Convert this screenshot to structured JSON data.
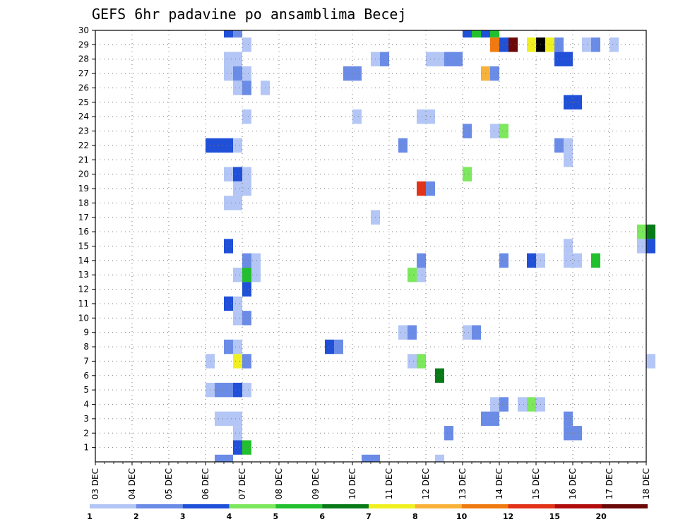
{
  "chart_data": {
    "type": "heatmap",
    "title": "GEFS 6hr padavine po ansamblima Becej",
    "xlabel": "",
    "ylabel": "",
    "x_tick_labels": [
      "03 DEC",
      "04 DEC",
      "05 DEC",
      "06 DEC",
      "07 DEC",
      "08 DEC",
      "09 DEC",
      "10 DEC",
      "11 DEC",
      "12 DEC",
      "13 DEC",
      "14 DEC",
      "15 DEC",
      "16 DEC",
      "17 DEC",
      "18 DEC"
    ],
    "x_range_days": [
      0,
      15
    ],
    "x_step_hours": 6,
    "y_tick_labels": [
      1,
      2,
      3,
      4,
      5,
      6,
      7,
      8,
      9,
      10,
      11,
      12,
      13,
      14,
      15,
      16,
      17,
      18,
      19,
      20,
      21,
      22,
      23,
      24,
      25,
      26,
      27,
      28,
      29,
      30
    ],
    "y_range": [
      0,
      30
    ],
    "grid": true,
    "legend_position": "bottom",
    "legend_levels": [
      1,
      2,
      3,
      4,
      5,
      6,
      7,
      8,
      10,
      12,
      15,
      20
    ],
    "legend_colors": [
      "#b3c6f5",
      "#6b8ce6",
      "#2050d8",
      "#7ce85c",
      "#22c02e",
      "#087a18",
      "#f0f020",
      "#f8b23a",
      "#f07a10",
      "#e23218",
      "#b20c0c",
      "#6c0808"
    ],
    "cells": [
      [
        30,
        3.5,
        3
      ],
      [
        30,
        3.75,
        2
      ],
      [
        30,
        10,
        3
      ],
      [
        30,
        10.25,
        5
      ],
      [
        30,
        10.5,
        3
      ],
      [
        30,
        10.75,
        5
      ],
      [
        29,
        4,
        1
      ],
      [
        29,
        10.75,
        9
      ],
      [
        29,
        11,
        3
      ],
      [
        29,
        11.25,
        12
      ],
      [
        29,
        11.75,
        7
      ],
      [
        29,
        12,
        14
      ],
      [
        29,
        12.25,
        7
      ],
      [
        29,
        12.5,
        2
      ],
      [
        29,
        13.25,
        1
      ],
      [
        29,
        13.5,
        2
      ],
      [
        29,
        14,
        1
      ],
      [
        28,
        3.5,
        1
      ],
      [
        28,
        3.75,
        1
      ],
      [
        28,
        7.5,
        1
      ],
      [
        28,
        7.75,
        2
      ],
      [
        28,
        9,
        1
      ],
      [
        28,
        9.25,
        1
      ],
      [
        28,
        9.5,
        2
      ],
      [
        28,
        9.75,
        2
      ],
      [
        28,
        12.5,
        3
      ],
      [
        28,
        12.75,
        3
      ],
      [
        27,
        3.5,
        1
      ],
      [
        27,
        3.75,
        2
      ],
      [
        27,
        4,
        1
      ],
      [
        27,
        6.75,
        2
      ],
      [
        27,
        7,
        2
      ],
      [
        27,
        10.5,
        8
      ],
      [
        27,
        10.75,
        2
      ],
      [
        26,
        3.75,
        1
      ],
      [
        26,
        4,
        2
      ],
      [
        26,
        4.5,
        1
      ],
      [
        25,
        12.75,
        3
      ],
      [
        25,
        13,
        3
      ],
      [
        24,
        4,
        1
      ],
      [
        24,
        7,
        1
      ],
      [
        24,
        8.75,
        1
      ],
      [
        24,
        9,
        1
      ],
      [
        23,
        10,
        2
      ],
      [
        23,
        10.75,
        1
      ],
      [
        23,
        11,
        4
      ],
      [
        22,
        3,
        3
      ],
      [
        22,
        3.25,
        3
      ],
      [
        22,
        3.5,
        3
      ],
      [
        22,
        3.75,
        1
      ],
      [
        22,
        8.25,
        2
      ],
      [
        22,
        12.5,
        2
      ],
      [
        22,
        12.75,
        1
      ],
      [
        21,
        12.75,
        1
      ],
      [
        20,
        3.5,
        1
      ],
      [
        20,
        3.75,
        3
      ],
      [
        20,
        4,
        1
      ],
      [
        20,
        10,
        4
      ],
      [
        19,
        3.75,
        1
      ],
      [
        19,
        4,
        1
      ],
      [
        19,
        8.75,
        10
      ],
      [
        19,
        9,
        2
      ],
      [
        18,
        3.5,
        1
      ],
      [
        18,
        3.75,
        1
      ],
      [
        17,
        7.5,
        1
      ],
      [
        16,
        14.75,
        4
      ],
      [
        16,
        15,
        6
      ],
      [
        15,
        3.5,
        3
      ],
      [
        15,
        12.75,
        1
      ],
      [
        15,
        14.75,
        1
      ],
      [
        15,
        15,
        3
      ],
      [
        14,
        4,
        2
      ],
      [
        14,
        4.25,
        1
      ],
      [
        14,
        8.75,
        2
      ],
      [
        14,
        11,
        2
      ],
      [
        14,
        11.75,
        3
      ],
      [
        14,
        12,
        1
      ],
      [
        14,
        12.75,
        1
      ],
      [
        14,
        13,
        1
      ],
      [
        14,
        13.5,
        5
      ],
      [
        13,
        3.75,
        1
      ],
      [
        13,
        4,
        5
      ],
      [
        13,
        4.25,
        1
      ],
      [
        13,
        8.5,
        4
      ],
      [
        13,
        8.75,
        1
      ],
      [
        12,
        4,
        3
      ],
      [
        11,
        3.5,
        3
      ],
      [
        11,
        3.75,
        1
      ],
      [
        10,
        3.75,
        1
      ],
      [
        10,
        4,
        2
      ],
      [
        9,
        8.25,
        1
      ],
      [
        9,
        8.5,
        2
      ],
      [
        9,
        10,
        1
      ],
      [
        9,
        10.25,
        2
      ],
      [
        8,
        3.5,
        2
      ],
      [
        8,
        3.75,
        1
      ],
      [
        8,
        6.25,
        3
      ],
      [
        8,
        6.5,
        2
      ],
      [
        7,
        3,
        1
      ],
      [
        7,
        3.75,
        7
      ],
      [
        7,
        4,
        2
      ],
      [
        7,
        8.5,
        1
      ],
      [
        7,
        8.75,
        4
      ],
      [
        7,
        15,
        1
      ],
      [
        6,
        9.25,
        6
      ],
      [
        5,
        3,
        1
      ],
      [
        5,
        3.25,
        2
      ],
      [
        5,
        3.5,
        2
      ],
      [
        5,
        3.75,
        3
      ],
      [
        5,
        4,
        1
      ],
      [
        4,
        10.75,
        1
      ],
      [
        4,
        11,
        2
      ],
      [
        4,
        11.5,
        1
      ],
      [
        4,
        11.75,
        4
      ],
      [
        4,
        12,
        1
      ],
      [
        3,
        3.25,
        1
      ],
      [
        3,
        3.5,
        1
      ],
      [
        3,
        3.75,
        1
      ],
      [
        3,
        10.5,
        2
      ],
      [
        3,
        10.75,
        2
      ],
      [
        3,
        12.75,
        2
      ],
      [
        2,
        3.75,
        1
      ],
      [
        2,
        9.5,
        2
      ],
      [
        2,
        12.75,
        2
      ],
      [
        2,
        13,
        2
      ],
      [
        1,
        3.75,
        3
      ],
      [
        1,
        4,
        5
      ],
      [
        0,
        3.25,
        2
      ],
      [
        0,
        3.5,
        2
      ],
      [
        0,
        7.25,
        2
      ],
      [
        0,
        7.5,
        2
      ],
      [
        0,
        9.25,
        1
      ]
    ]
  }
}
